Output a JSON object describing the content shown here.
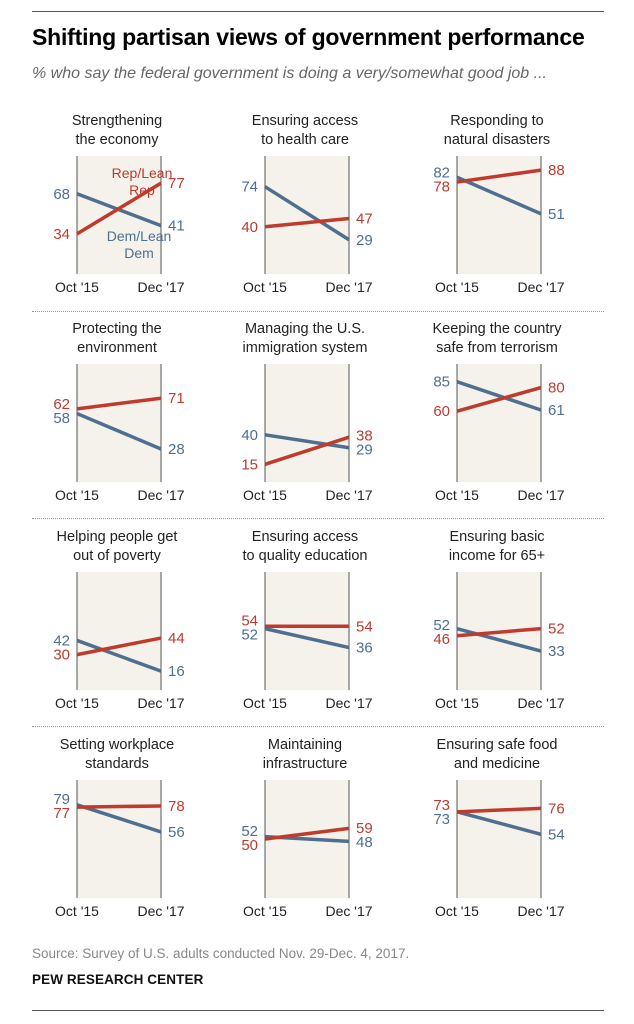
{
  "header": {
    "title": "Shifting partisan views of government performance",
    "subtitle": "% who say the federal government is doing a very/somewhat good job ..."
  },
  "footer": {
    "source": "Source: Survey of U.S. adults conducted Nov. 29-Dec. 4, 2017.",
    "brand": "PEW RESEARCH CENTER"
  },
  "colors": {
    "rep": "#bf3b2e",
    "dem": "#4f6f91",
    "plot_bg": "#f4f2ea",
    "axis": "#555555"
  },
  "chart_data": {
    "type": "line",
    "x": [
      "Oct '15",
      "Dec '17"
    ],
    "ylim": [
      0,
      100
    ],
    "series_labels": {
      "rep": "Rep/Lean Rep",
      "dem": "Dem/Lean Dem"
    },
    "panels": [
      {
        "title": [
          "Strengthening",
          "the economy"
        ],
        "rep": [
          34,
          77
        ],
        "dem": [
          68,
          41
        ]
      },
      {
        "title": [
          "Ensuring access",
          "to health care"
        ],
        "rep": [
          40,
          47
        ],
        "dem": [
          74,
          29
        ]
      },
      {
        "title": [
          "Responding to",
          "natural disasters"
        ],
        "rep": [
          78,
          88
        ],
        "dem": [
          82,
          51
        ]
      },
      {
        "title": [
          "Protecting the",
          "environment"
        ],
        "rep": [
          62,
          71
        ],
        "dem": [
          58,
          28
        ]
      },
      {
        "title": [
          "Managing the U.S.",
          "immigration system"
        ],
        "rep": [
          15,
          38
        ],
        "dem": [
          40,
          29
        ]
      },
      {
        "title": [
          "Keeping the country",
          "safe from terrorism"
        ],
        "rep": [
          60,
          80
        ],
        "dem": [
          85,
          61
        ]
      },
      {
        "title": [
          "Helping people get",
          "out of poverty"
        ],
        "rep": [
          30,
          44
        ],
        "dem": [
          42,
          16
        ]
      },
      {
        "title": [
          "Ensuring access",
          "to quality education"
        ],
        "rep": [
          54,
          54
        ],
        "dem": [
          52,
          36
        ]
      },
      {
        "title": [
          "Ensuring basic",
          "income for 65+"
        ],
        "rep": [
          46,
          52
        ],
        "dem": [
          52,
          33
        ]
      },
      {
        "title": [
          "Setting workplace",
          "standards"
        ],
        "rep": [
          77,
          78
        ],
        "dem": [
          79,
          56
        ]
      },
      {
        "title": [
          "Maintaining",
          "infrastructure"
        ],
        "rep": [
          50,
          59
        ],
        "dem": [
          52,
          48
        ]
      },
      {
        "title": [
          "Ensuring safe food",
          "and medicine"
        ],
        "rep": [
          73,
          76
        ],
        "dem": [
          73,
          54
        ]
      }
    ]
  }
}
